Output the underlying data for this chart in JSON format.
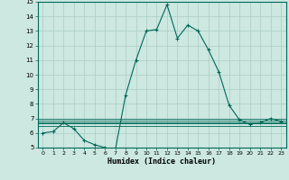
{
  "xlabel": "Humidex (Indice chaleur)",
  "background_color": "#cce8e0",
  "grid_color": "#aaccc4",
  "line_color": "#006858",
  "xlim": [
    -0.5,
    23.5
  ],
  "ylim": [
    5,
    15
  ],
  "xticks": [
    0,
    1,
    2,
    3,
    4,
    5,
    6,
    7,
    8,
    9,
    10,
    11,
    12,
    13,
    14,
    15,
    16,
    17,
    18,
    19,
    20,
    21,
    22,
    23
  ],
  "yticks": [
    5,
    6,
    7,
    8,
    9,
    10,
    11,
    12,
    13,
    14,
    15
  ],
  "main_series_x": [
    0,
    1,
    2,
    3,
    4,
    5,
    6,
    7,
    8,
    9,
    10,
    11,
    12,
    13,
    14,
    15,
    16,
    17,
    18,
    19,
    20,
    21,
    22,
    23
  ],
  "main_series_y": [
    6.0,
    6.1,
    6.7,
    6.3,
    5.5,
    5.2,
    5.0,
    4.8,
    8.6,
    11.0,
    13.0,
    13.1,
    14.8,
    12.5,
    13.4,
    13.0,
    11.7,
    10.2,
    7.9,
    6.9,
    6.6,
    6.7,
    7.0,
    6.8
  ],
  "flat_lines_y": [
    6.5,
    6.65,
    6.75,
    6.85,
    6.95
  ]
}
